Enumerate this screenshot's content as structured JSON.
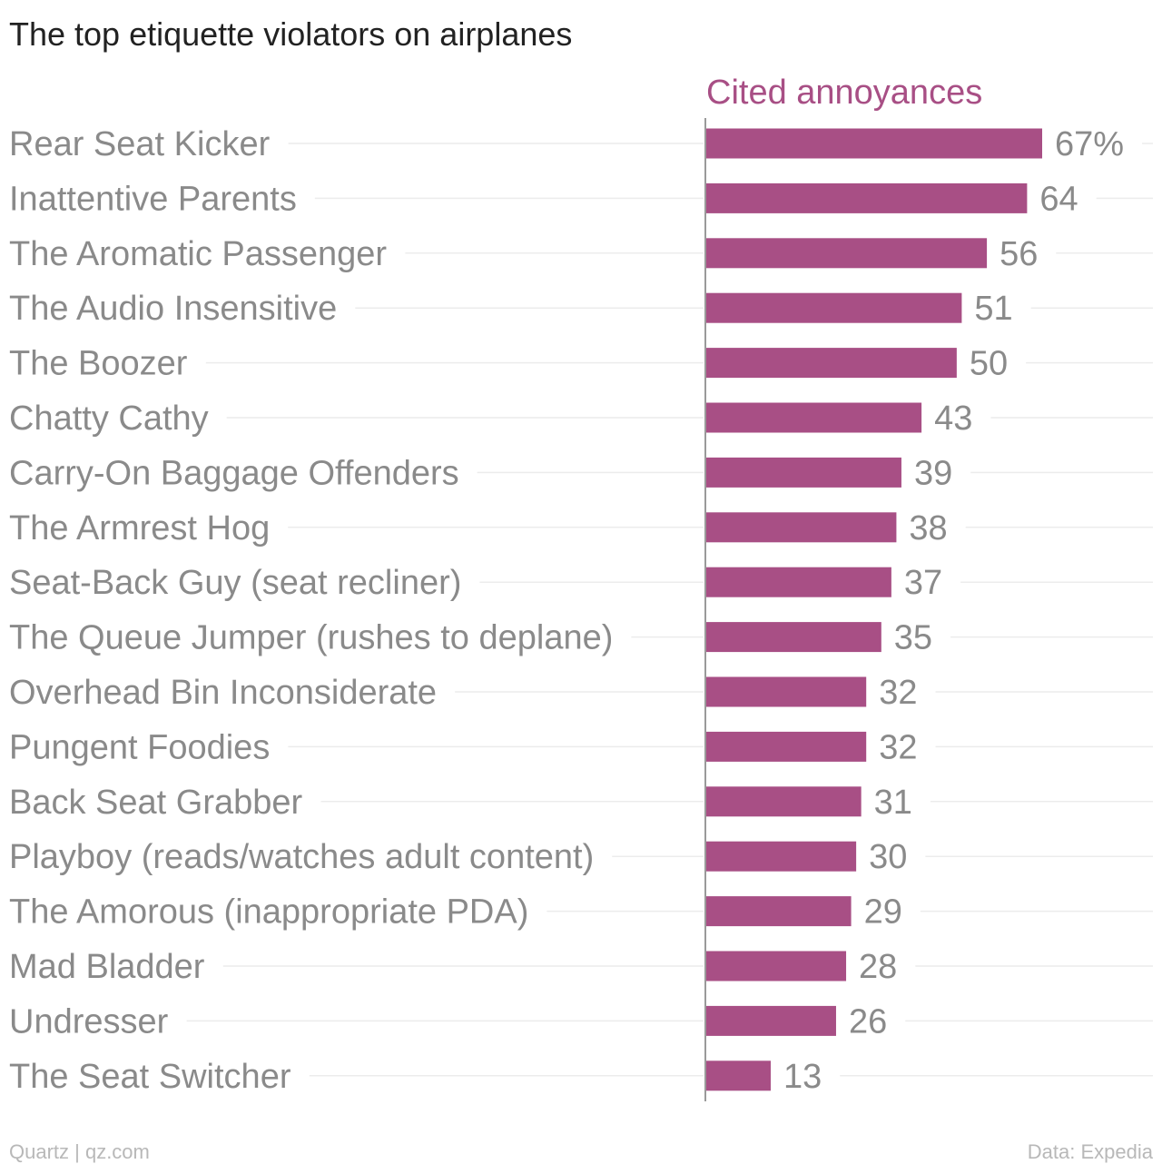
{
  "chart_data": {
    "type": "bar",
    "orientation": "horizontal",
    "title": "The top etiquette violators on airplanes",
    "series": [
      {
        "name": "Cited annoyances",
        "color": "#a84f85",
        "values": [
          67,
          64,
          56,
          51,
          50,
          43,
          39,
          38,
          37,
          35,
          32,
          32,
          31,
          30,
          29,
          28,
          26,
          13
        ]
      }
    ],
    "categories": [
      "Rear Seat Kicker",
      "Inattentive Parents",
      "The Aromatic Passenger",
      "The Audio Insensitive",
      "The Boozer",
      "Chatty Cathy",
      "Carry-On Baggage Offenders",
      "The Armrest Hog",
      "Seat-Back Guy (seat recliner)",
      "The Queue Jumper (rushes to deplane)",
      "Overhead Bin Inconsiderate",
      "Pungent Foodies",
      "Back Seat Grabber",
      "Playboy (reads/watches adult content)",
      "The Amorous (inappropriate PDA)",
      "Mad Bladder",
      "Undresser",
      "The Seat Switcher"
    ],
    "value_labels": [
      "67%",
      "64",
      "56",
      "51",
      "50",
      "43",
      "39",
      "38",
      "37",
      "35",
      "32",
      "32",
      "31",
      "30",
      "29",
      "28",
      "26",
      "13"
    ],
    "xlim": [
      0,
      67
    ],
    "grid": false,
    "legend": "none"
  },
  "footer": {
    "source_left": "Quartz | qz.com",
    "source_right": "Data: Expedia"
  },
  "colors": {
    "bar": "#a84f85",
    "label": "#8a8a8a",
    "title": "#222222",
    "footer": "#b8b8b8"
  }
}
